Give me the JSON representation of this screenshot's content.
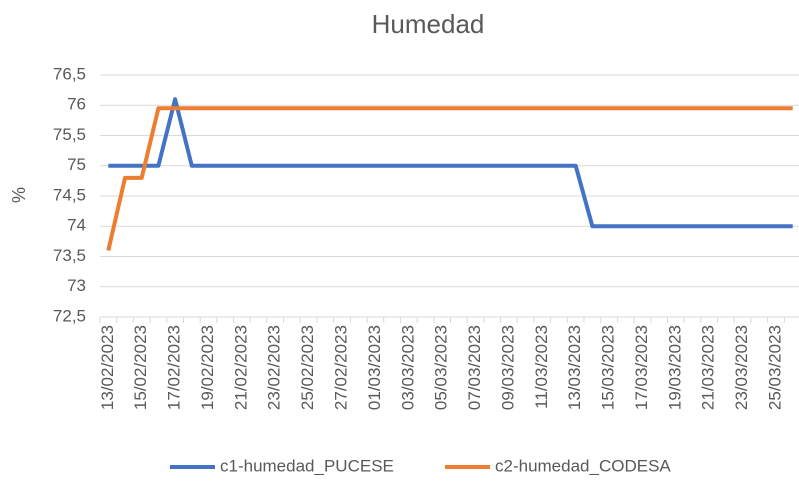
{
  "chart_data": {
    "type": "line",
    "title": "Humedad",
    "y_label": "%",
    "categories": [
      "13/02/2023",
      null,
      "15/02/2023",
      null,
      "17/02/2023",
      null,
      "19/02/2023",
      null,
      "21/02/2023",
      null,
      "23/02/2023",
      null,
      "25/02/2023",
      null,
      "27/02/2023",
      null,
      "01/03/2023",
      null,
      "03/03/2023",
      null,
      "05/03/2023",
      null,
      "07/03/2023",
      null,
      "09/03/2023",
      null,
      "11/03/2023",
      null,
      "13/03/2023",
      null,
      "15/03/2023",
      null,
      "17/03/2023",
      null,
      "19/03/2023",
      null,
      "21/03/2023",
      null,
      "23/03/2023",
      null,
      "25/03/2023",
      null
    ],
    "series": [
      {
        "name": "c1-humedad_PUCESE",
        "color": "#4472c4",
        "values": [
          75,
          75,
          75,
          75,
          76.1,
          75,
          75,
          75,
          75,
          75,
          75,
          75,
          75,
          75,
          75,
          75,
          75,
          75,
          75,
          75,
          75,
          75,
          75,
          75,
          75,
          75,
          75,
          75,
          75,
          74,
          74,
          74,
          74,
          74,
          74,
          74,
          74,
          74,
          74,
          74,
          74,
          74
        ]
      },
      {
        "name": "c2-humedad_CODESA",
        "color": "#ed7d31",
        "values": [
          73.6,
          74.8,
          74.8,
          75.95,
          75.95,
          75.95,
          75.95,
          75.95,
          75.95,
          75.95,
          75.95,
          75.95,
          75.95,
          75.95,
          75.95,
          75.95,
          75.95,
          75.95,
          75.95,
          75.95,
          75.95,
          75.95,
          75.95,
          75.95,
          75.95,
          75.95,
          75.95,
          75.95,
          75.95,
          75.95,
          75.95,
          75.95,
          75.95,
          75.95,
          75.95,
          75.95,
          75.95,
          75.95,
          75.95,
          75.95,
          75.95,
          75.95
        ]
      }
    ],
    "ylim": [
      72.5,
      76.5
    ],
    "yticks": [
      {
        "value": 72.5,
        "label": "72,5"
      },
      73,
      {
        "value": 73.5,
        "label": "73,5"
      },
      74,
      {
        "value": 74.5,
        "label": "74,5"
      },
      75,
      {
        "value": 75.5,
        "label": "75,5"
      },
      76,
      {
        "value": 76.5,
        "label": "76,5"
      }
    ],
    "grid": true,
    "legend": "bottom"
  }
}
